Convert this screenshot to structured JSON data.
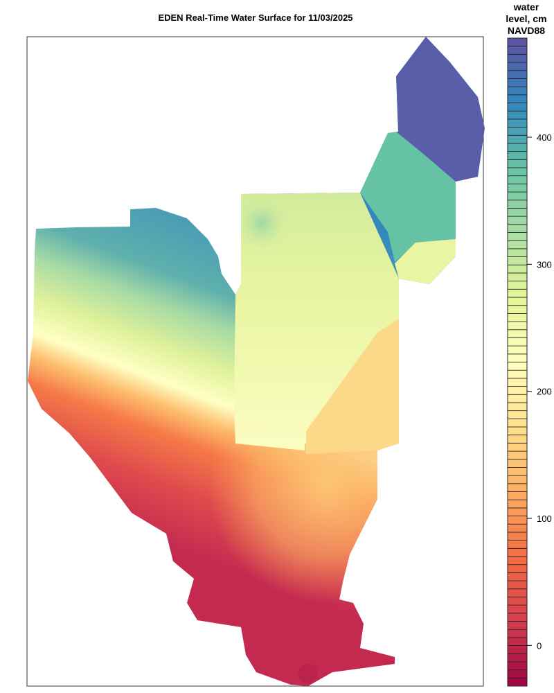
{
  "title": "EDEN Real-Time Water Surface for 11/03/2025",
  "legend": {
    "title_lines": [
      "water",
      "level, cm",
      "NAVD88"
    ],
    "ticks": [
      0,
      100,
      200,
      300,
      400
    ],
    "range": [
      -32,
      478
    ],
    "band_count": 80,
    "palette": [
      "#9e0142",
      "#d53e4f",
      "#f46d43",
      "#fdae61",
      "#fee08b",
      "#ffffbf",
      "#e6f598",
      "#abdda4",
      "#66c2a5",
      "#3288bd",
      "#5e4fa2"
    ]
  },
  "map": {
    "colors": {
      "northeast_region": "#5a5ea8",
      "teal_wedge": "#66c2a5",
      "border": "#000000"
    }
  }
}
